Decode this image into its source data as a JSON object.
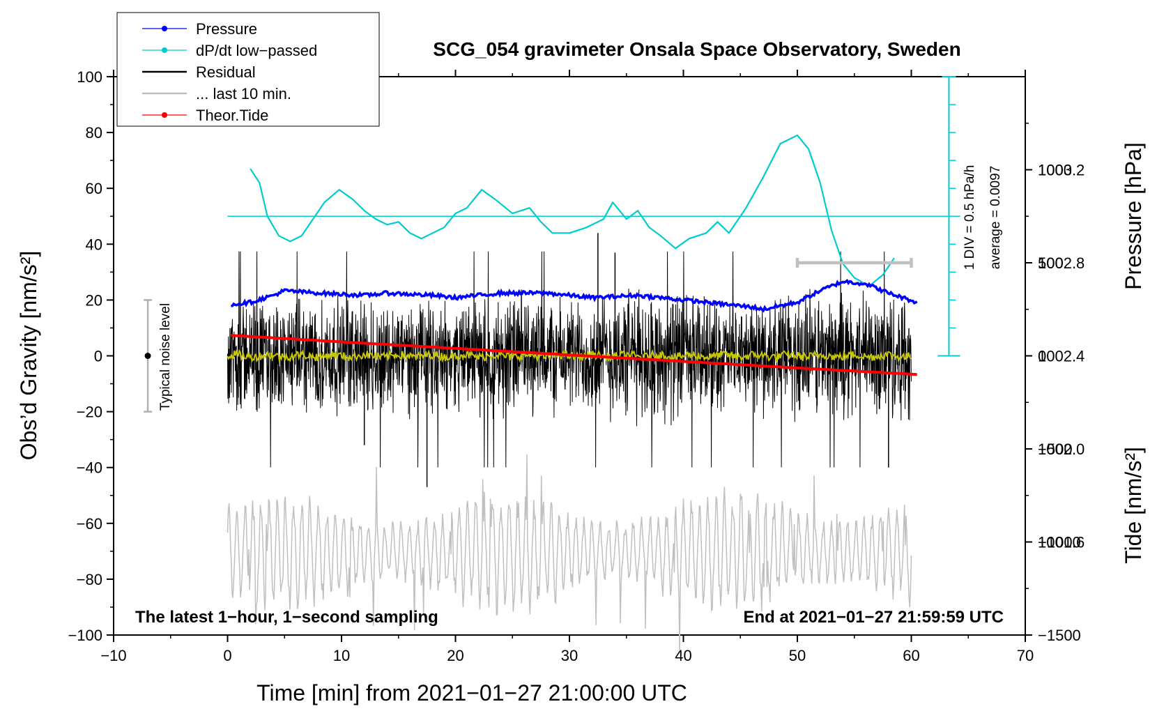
{
  "chart_data": {
    "type": "line",
    "title": "SCG_054 gravimeter Onsala Space Observatory, Sweden",
    "xlabel": "Time [min] from 2021−01−27 21:00:00 UTC",
    "ylabel": "Obs’d Gravity [nm/s²]",
    "ylabel_right_pressure": "Pressure [hPa]",
    "ylabel_right_tide": "Tide [nm/s²]",
    "xlim": [
      -10,
      70
    ],
    "ylim": [
      -100,
      100
    ],
    "pressure_lim": [
      1001.2,
      1003.6
    ],
    "tide_lim": [
      -1500,
      1500
    ],
    "x_ticks": [
      "−10",
      "0",
      "10",
      "20",
      "30",
      "40",
      "50",
      "60",
      "70"
    ],
    "y_ticks": [
      "100",
      "80",
      "60",
      "40",
      "20",
      "0",
      "−20",
      "−40",
      "−60",
      "−80",
      "−100"
    ],
    "pressure_ticks": [
      "1003.2",
      "1002.8",
      "1002.4",
      "1002.0",
      "1001.6"
    ],
    "tide_ticks": [
      "1000",
      "500",
      "0",
      "−500",
      "−1000",
      "−1500"
    ],
    "legend": [
      {
        "label": "Pressure",
        "color": "#0000ff",
        "style": "line-dot"
      },
      {
        "label": "dP/dt low−passed",
        "color": "#00cccc",
        "style": "line-dot"
      },
      {
        "label": "Residual",
        "color": "#000000",
        "style": "line"
      },
      {
        "label": "... last 10 min.",
        "color": "#c0c0c0",
        "style": "line"
      },
      {
        "label": "Theor.Tide",
        "color": "#ff0000",
        "style": "line-dot"
      }
    ],
    "annotations": {
      "noise": "Typical noise level",
      "scale_div": "1 DIV = 0.5 hPa/h",
      "scale_avg": "average = 0.0097",
      "bottom_left": "The latest 1−hour, 1−second sampling",
      "bottom_right": "End at 2021−01−27 21:59:59 UTC"
    },
    "noise_bar": {
      "x": -7,
      "center": 0,
      "half_range": 20
    },
    "dpdt_zero_level": 50,
    "last10_bar": {
      "x_start": 50,
      "x_end": 60,
      "y": 500
    },
    "series": [
      {
        "name": "Pressure",
        "unit": "hPa",
        "color": "#0000ff",
        "x": [
          0.3,
          2,
          4,
          5,
          8,
          12,
          14,
          18,
          20,
          24,
          28,
          32,
          36,
          40,
          44,
          46,
          47,
          50,
          52,
          54,
          56,
          58,
          60.5
        ],
        "y": [
          1002.62,
          1002.63,
          1002.66,
          1002.68,
          1002.67,
          1002.66,
          1002.67,
          1002.66,
          1002.65,
          1002.67,
          1002.67,
          1002.65,
          1002.66,
          1002.64,
          1002.62,
          1002.61,
          1002.6,
          1002.63,
          1002.68,
          1002.72,
          1002.71,
          1002.67,
          1002.63
        ]
      },
      {
        "name": "dP/dt low−passed",
        "unit": "nm/s² (plot scale)",
        "color": "#00cccc",
        "x": [
          2,
          2.8,
          3.5,
          4.5,
          5.5,
          6.5,
          7.5,
          8.5,
          9.8,
          11,
          12,
          13,
          14,
          15,
          16,
          17,
          18,
          19,
          20,
          21,
          22.3,
          23.5,
          25,
          26.5,
          27.5,
          28.5,
          30,
          31.5,
          33,
          33.8,
          35,
          36,
          37,
          38,
          39.3,
          40.5,
          42,
          43,
          44,
          45.5,
          47,
          48.5,
          50,
          51,
          52,
          53,
          54,
          55,
          56.3,
          57.5,
          58.5
        ],
        "y": [
          67,
          62,
          50,
          43,
          41,
          43,
          49,
          55,
          59.5,
          56,
          52,
          49,
          47,
          48,
          44,
          42,
          44,
          46,
          51,
          53,
          59.5,
          56,
          51,
          53,
          48,
          44,
          44,
          46,
          49,
          55,
          49,
          52,
          46,
          43,
          38.5,
          42,
          44,
          48,
          44,
          53,
          64,
          76,
          79,
          74,
          62,
          45,
          33,
          28,
          25,
          29,
          35
        ]
      },
      {
        "name": "Residual",
        "unit": "nm/s²",
        "color": "#000000",
        "x_range": [
          0,
          60
        ],
        "min": -47,
        "max": 44,
        "typical_amplitude": 22,
        "envelope_minutes": [
          0,
          5,
          10,
          15,
          20,
          25,
          30,
          35,
          40,
          45,
          50,
          55,
          60
        ],
        "envelope_amplitude": [
          23,
          20,
          22,
          22,
          19,
          24,
          21,
          25,
          24,
          19,
          25,
          23,
          26
        ]
      },
      {
        "name": "Residual low−passed",
        "unit": "nm/s²",
        "color": "#c8c800",
        "x_range": [
          0,
          60
        ],
        "typical_amplitude": 1.5
      },
      {
        "name": "... last 10 min.",
        "unit": "nm/s² (offset −70)",
        "color": "#c0c0c0",
        "x_range": [
          0,
          60
        ],
        "center": -70,
        "typical_amplitude": 16
      },
      {
        "name": "Theor.Tide",
        "unit": "nm/s²",
        "color": "#ff0000",
        "x": [
          0.3,
          10,
          20,
          30,
          40,
          50,
          60.5
        ],
        "y": [
          110,
          75,
          40,
          5,
          -30,
          -65,
          -100
        ]
      }
    ]
  }
}
